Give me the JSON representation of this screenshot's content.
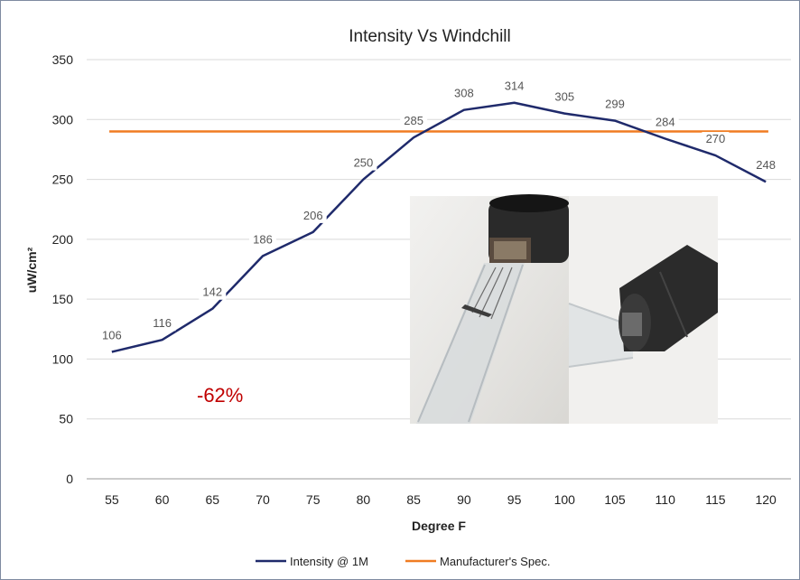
{
  "chart_data": {
    "type": "line",
    "title": "Intensity Vs Windchill",
    "xlabel": "Degree F",
    "ylabel": "uW/cm²",
    "x": [
      55,
      60,
      65,
      70,
      75,
      80,
      85,
      90,
      95,
      100,
      105,
      110,
      115,
      120
    ],
    "xlim": [
      55,
      120
    ],
    "ylim": [
      0,
      350
    ],
    "yticks": [
      0,
      50,
      100,
      150,
      200,
      250,
      300,
      350
    ],
    "grid": true,
    "legend_position": "bottom",
    "series": [
      {
        "name": "Intensity @ 1M",
        "color": "#1f2a6b",
        "values": [
          106,
          116,
          142,
          186,
          206,
          250,
          285,
          308,
          314,
          305,
          299,
          284,
          270,
          248
        ],
        "data_labels": [
          "106",
          "116",
          "142",
          "186",
          "206",
          "250",
          "285",
          "308",
          "314",
          "305",
          "299",
          "284",
          "270",
          "248"
        ]
      },
      {
        "name": "Manufacturer's Spec.",
        "color": "#f07c22",
        "values": [
          290,
          290,
          290,
          290,
          290,
          290,
          290,
          290,
          290,
          290,
          290,
          290,
          290,
          290
        ]
      }
    ],
    "annotations": [
      {
        "text": "-62%",
        "color": "#c00000"
      }
    ]
  },
  "photos": {
    "left": {
      "icon": "lamp-filament-photo"
    },
    "right": {
      "icon": "lamp-base-photo"
    }
  }
}
